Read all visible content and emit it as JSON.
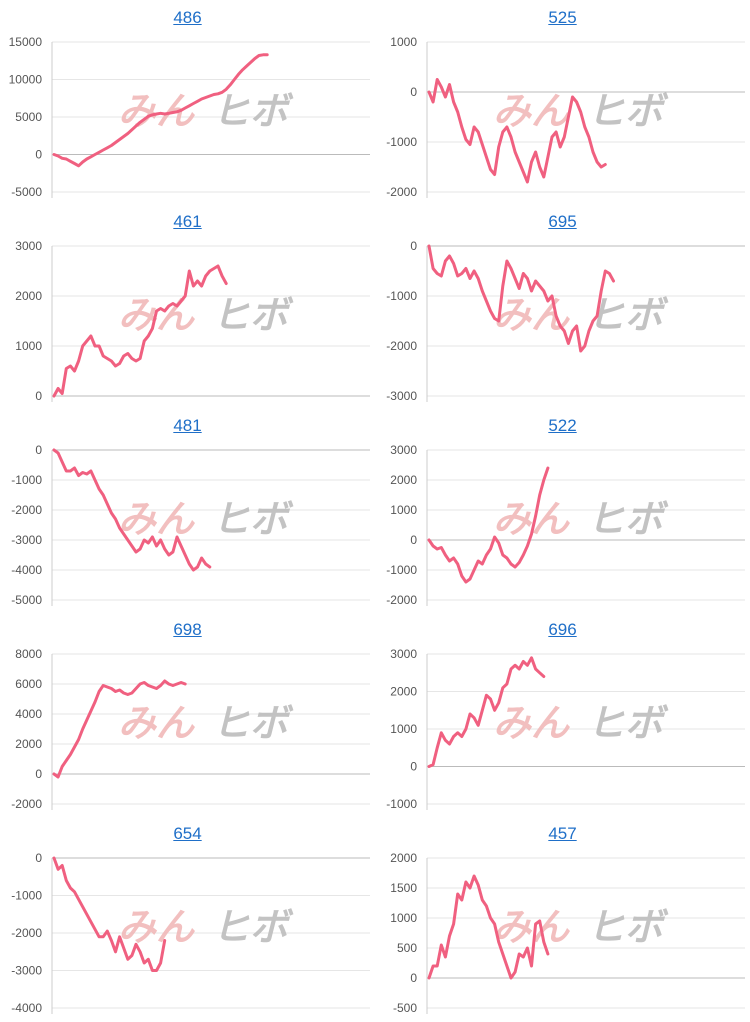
{
  "colors": {
    "line": "#f06080",
    "grid": "#e6e6e6",
    "axis": "#cccccc",
    "link": "#1f6fc8",
    "watermark_pink": "#f0b4b4",
    "watermark_gray": "#b8b8b8"
  },
  "watermark": {
    "left": "みん",
    "right": "ヒボ"
  },
  "chart_data": [
    {
      "type": "line",
      "title": "486",
      "ylim": [
        -5000,
        15000
      ],
      "yticks": [
        15000,
        10000,
        5000,
        0,
        -5000
      ],
      "ytick_labels": [
        "15000",
        "10000",
        "5000",
        "0",
        "-5000"
      ],
      "values": [
        0,
        -200,
        -500,
        -600,
        -900,
        -1200,
        -1500,
        -1000,
        -600,
        -300,
        0,
        300,
        600,
        900,
        1200,
        1600,
        2000,
        2400,
        2800,
        3300,
        3800,
        4300,
        4700,
        5100,
        5300,
        5400,
        5500,
        5400,
        5500,
        5600,
        5700,
        5900,
        6200,
        6500,
        6800,
        7100,
        7400,
        7600,
        7800,
        8000,
        8100,
        8300,
        8700,
        9300,
        10000,
        10700,
        11300,
        11800,
        12300,
        12800,
        13200,
        13300,
        13300
      ]
    },
    {
      "type": "line",
      "title": "525",
      "ylim": [
        -2000,
        1000
      ],
      "yticks": [
        1000,
        0,
        -1000,
        -2000
      ],
      "ytick_labels": [
        "1000",
        "0",
        "-1000",
        "-2000"
      ],
      "values": [
        0,
        -200,
        250,
        100,
        -100,
        150,
        -200,
        -400,
        -700,
        -950,
        -1050,
        -700,
        -800,
        -1050,
        -1300,
        -1550,
        -1650,
        -1100,
        -800,
        -700,
        -900,
        -1200,
        -1400,
        -1600,
        -1800,
        -1400,
        -1200,
        -1500,
        -1700,
        -1300,
        -900,
        -800,
        -1100,
        -900,
        -500,
        -100,
        -200,
        -400,
        -700,
        -900,
        -1200,
        -1400,
        -1500,
        -1450
      ]
    },
    {
      "type": "line",
      "title": "461",
      "ylim": [
        0,
        3000
      ],
      "yticks": [
        3000,
        2000,
        1000,
        0
      ],
      "ytick_labels": [
        "3000",
        "2000",
        "1000",
        "0"
      ],
      "values": [
        0,
        150,
        50,
        550,
        600,
        500,
        700,
        1000,
        1100,
        1200,
        1000,
        1000,
        800,
        750,
        700,
        600,
        650,
        800,
        850,
        750,
        700,
        750,
        1100,
        1200,
        1350,
        1700,
        1750,
        1700,
        1800,
        1850,
        1800,
        1900,
        2000,
        2500,
        2200,
        2300,
        2200,
        2400,
        2500,
        2550,
        2600,
        2400,
        2250
      ]
    },
    {
      "type": "line",
      "title": "695",
      "ylim": [
        -3000,
        0
      ],
      "yticks": [
        0,
        -1000,
        -2000,
        -3000
      ],
      "ytick_labels": [
        "0",
        "-1000",
        "-2000",
        "-3000"
      ],
      "values": [
        0,
        -450,
        -550,
        -600,
        -300,
        -200,
        -350,
        -600,
        -550,
        -450,
        -650,
        -500,
        -650,
        -900,
        -1100,
        -1300,
        -1450,
        -1500,
        -800,
        -300,
        -450,
        -650,
        -850,
        -550,
        -650,
        -900,
        -700,
        -800,
        -900,
        -1100,
        -1000,
        -1400,
        -1600,
        -1700,
        -1950,
        -1700,
        -1600,
        -2100,
        -2000,
        -1700,
        -1500,
        -1400,
        -900,
        -500,
        -550,
        -700
      ]
    },
    {
      "type": "line",
      "title": "481",
      "ylim": [
        -5000,
        0
      ],
      "yticks": [
        0,
        -1000,
        -2000,
        -3000,
        -4000,
        -5000
      ],
      "ytick_labels": [
        "0",
        "-1000",
        "-2000",
        "-3000",
        "-4000",
        "-5000"
      ],
      "values": [
        0,
        -100,
        -400,
        -700,
        -700,
        -600,
        -850,
        -750,
        -800,
        -700,
        -1000,
        -1300,
        -1500,
        -1800,
        -2100,
        -2300,
        -2600,
        -2800,
        -3000,
        -3200,
        -3400,
        -3300,
        -3000,
        -3100,
        -2900,
        -3200,
        -3000,
        -3300,
        -3500,
        -3400,
        -2900,
        -3200,
        -3500,
        -3800,
        -4000,
        -3900,
        -3600,
        -3800,
        -3900
      ]
    },
    {
      "type": "line",
      "title": "522",
      "ylim": [
        -2000,
        3000
      ],
      "yticks": [
        3000,
        2000,
        1000,
        0,
        -1000,
        -2000
      ],
      "ytick_labels": [
        "3000",
        "2000",
        "1000",
        "0",
        "-1000",
        "-2000"
      ],
      "values": [
        0,
        -200,
        -300,
        -250,
        -500,
        -700,
        -600,
        -800,
        -1200,
        -1400,
        -1300,
        -1000,
        -700,
        -800,
        -500,
        -300,
        100,
        -100,
        -500,
        -600,
        -800,
        -900,
        -750,
        -500,
        -200,
        200,
        800,
        1500,
        2000,
        2400
      ]
    },
    {
      "type": "line",
      "title": "698",
      "ylim": [
        -2000,
        8000
      ],
      "yticks": [
        8000,
        6000,
        4000,
        2000,
        0,
        -2000
      ],
      "ytick_labels": [
        "8000",
        "6000",
        "4000",
        "2000",
        "0",
        "-2000"
      ],
      "values": [
        0,
        -200,
        500,
        900,
        1300,
        1800,
        2300,
        3000,
        3600,
        4200,
        4800,
        5500,
        5900,
        5800,
        5700,
        5500,
        5600,
        5400,
        5300,
        5400,
        5700,
        6000,
        6100,
        5900,
        5800,
        5700,
        5900,
        6200,
        6000,
        5900,
        6000,
        6100,
        6000
      ]
    },
    {
      "type": "line",
      "title": "696",
      "ylim": [
        -1000,
        3000
      ],
      "yticks": [
        3000,
        2000,
        1000,
        0,
        -1000
      ],
      "ytick_labels": [
        "3000",
        "2000",
        "1000",
        "0",
        "-1000"
      ],
      "values": [
        0,
        50,
        500,
        900,
        700,
        600,
        800,
        900,
        800,
        1000,
        1400,
        1300,
        1100,
        1500,
        1900,
        1800,
        1500,
        1700,
        2100,
        2200,
        2600,
        2700,
        2600,
        2800,
        2700,
        2900,
        2600,
        2500,
        2400
      ]
    },
    {
      "type": "line",
      "title": "654",
      "ylim": [
        -4000,
        0
      ],
      "yticks": [
        0,
        -1000,
        -2000,
        -3000,
        -4000
      ],
      "ytick_labels": [
        "0",
        "-1000",
        "-2000",
        "-3000",
        "-4000"
      ],
      "values": [
        0,
        -300,
        -200,
        -600,
        -800,
        -900,
        -1100,
        -1300,
        -1500,
        -1700,
        -1900,
        -2100,
        -2100,
        -1950,
        -2200,
        -2500,
        -2100,
        -2400,
        -2700,
        -2600,
        -2300,
        -2500,
        -2800,
        -2700,
        -3000,
        -3000,
        -2800,
        -2200
      ]
    },
    {
      "type": "line",
      "title": "457",
      "ylim": [
        -500,
        2000
      ],
      "yticks": [
        2000,
        1500,
        1000,
        500,
        0,
        -500
      ],
      "ytick_labels": [
        "2000",
        "1500",
        "1000",
        "500",
        "0",
        "-500"
      ],
      "values": [
        0,
        200,
        200,
        550,
        350,
        700,
        900,
        1400,
        1300,
        1600,
        1500,
        1700,
        1550,
        1300,
        1200,
        1000,
        900,
        600,
        400,
        200,
        0,
        100,
        400,
        350,
        500,
        200,
        900,
        950,
        600,
        400
      ]
    }
  ]
}
